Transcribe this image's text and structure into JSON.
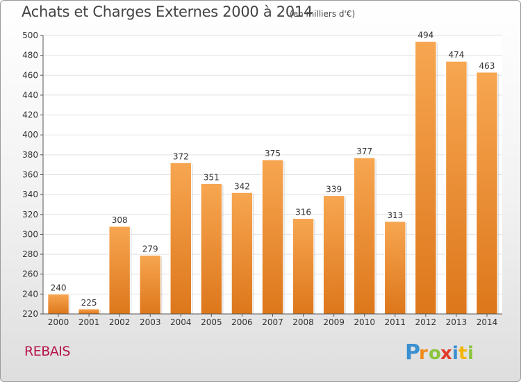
{
  "header": {
    "title": "Achats et Charges Externes 2000 à 2014",
    "unit": "(en milliers d'€)"
  },
  "footer": {
    "commune": "REBAIS",
    "brand": "Proxiti"
  },
  "colors": {
    "bar_light": "#f5a24c",
    "bar_dark": "#e07c1f",
    "commune": "#b5144a",
    "grid": "#e2e2e2"
  },
  "chart_data": {
    "type": "bar",
    "title": "Achats et Charges Externes 2000 à 2014",
    "subtitle": "(en milliers d'€)",
    "xlabel": "",
    "ylabel": "",
    "categories": [
      "2000",
      "2001",
      "2002",
      "2003",
      "2004",
      "2005",
      "2006",
      "2007",
      "2008",
      "2009",
      "2010",
      "2011",
      "2012",
      "2013",
      "2014"
    ],
    "values": [
      240,
      225,
      308,
      279,
      372,
      351,
      342,
      375,
      316,
      339,
      377,
      313,
      494,
      474,
      463
    ],
    "ylim": [
      220,
      500
    ],
    "yticks": [
      220,
      240,
      260,
      280,
      300,
      320,
      340,
      360,
      380,
      400,
      420,
      440,
      460,
      480,
      500
    ],
    "grid": true,
    "legend": "none"
  }
}
